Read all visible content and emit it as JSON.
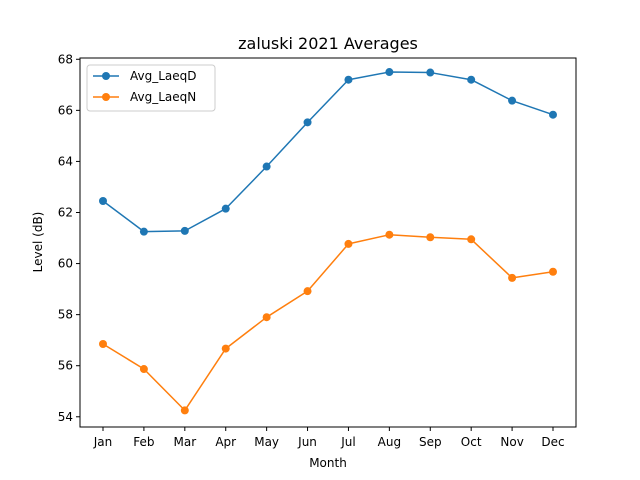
{
  "chart_data": {
    "type": "line",
    "title": "zaluski 2021 Averages",
    "xlabel": "Month",
    "ylabel": "Level (dB)",
    "categories": [
      "Jan",
      "Feb",
      "Mar",
      "Apr",
      "May",
      "Jun",
      "Jul",
      "Aug",
      "Sep",
      "Oct",
      "Nov",
      "Dec"
    ],
    "ylim": [
      53.6,
      68.05
    ],
    "yticks": [
      54,
      56,
      58,
      60,
      62,
      64,
      66,
      68
    ],
    "grid": false,
    "legend_position": "upper-left",
    "series": [
      {
        "name": "Avg_LaeqD",
        "color": "#1f77b4",
        "marker": "circle",
        "values": [
          62.45,
          61.25,
          61.28,
          62.15,
          63.8,
          65.53,
          67.2,
          67.5,
          67.48,
          67.2,
          66.38,
          65.83
        ]
      },
      {
        "name": "Avg_LaeqN",
        "color": "#ff7f0e",
        "marker": "circle",
        "values": [
          56.85,
          55.87,
          54.25,
          56.67,
          57.9,
          58.92,
          60.77,
          61.13,
          61.03,
          60.95,
          59.44,
          59.68
        ]
      }
    ]
  }
}
